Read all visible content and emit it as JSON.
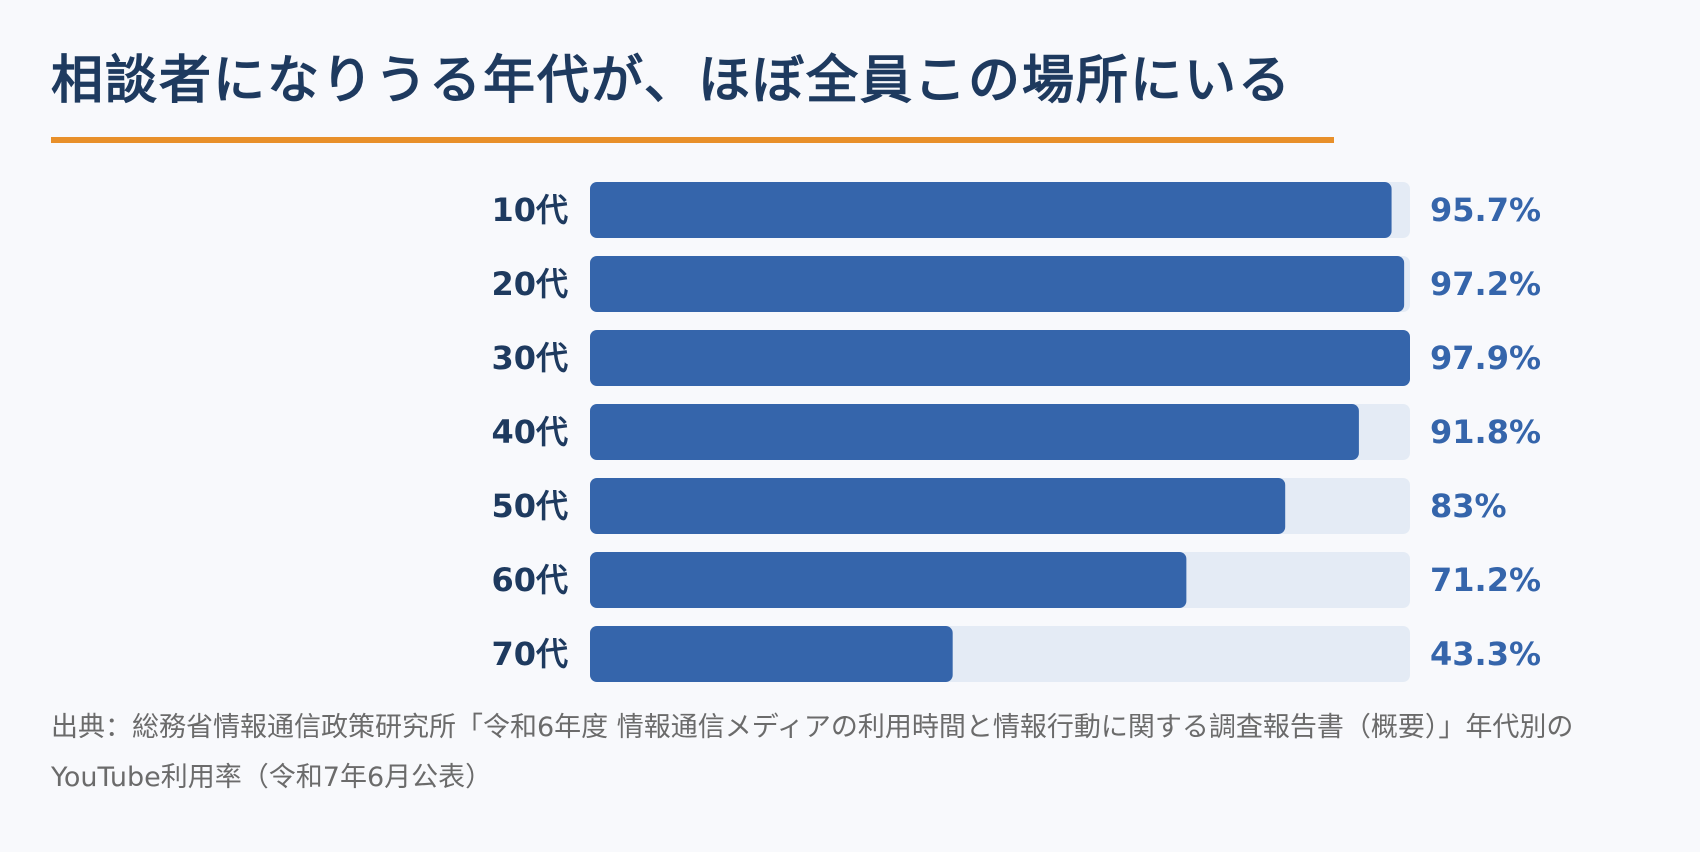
{
  "title": "相談者になりうる年代が、ほぼ全員この場所にいる",
  "colors": {
    "title": "#1e3a5f",
    "title_rule": "#e8902a",
    "bar": "#3565ab",
    "track": "#e4ebf5",
    "category_label": "#1e3a5f",
    "value_label": "#3565ab",
    "background": "#f8f9fc",
    "source_text": "#6b6b6b"
  },
  "chart_data": {
    "type": "bar",
    "orientation": "horizontal",
    "categories": [
      "10代",
      "20代",
      "30代",
      "40代",
      "50代",
      "60代",
      "70代"
    ],
    "values": [
      95.7,
      97.2,
      97.9,
      91.8,
      83,
      71.2,
      43.3
    ],
    "value_labels": [
      "95.7%",
      "97.2%",
      "97.9%",
      "91.8%",
      "83%",
      "71.2%",
      "43.3%"
    ],
    "xlim": [
      0,
      97.9
    ],
    "grid": false,
    "legend": "none"
  },
  "source": "出典：総務省情報通信政策研究所「令和6年度 情報通信メディアの利用時間と情報行動に関する調査報告書（概要）」年代別のYouTube利用率（令和7年6月公表）"
}
